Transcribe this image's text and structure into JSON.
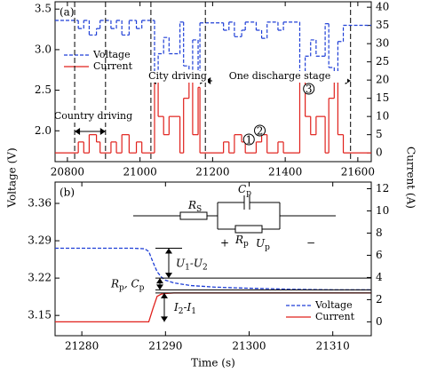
{
  "chart_data": [
    {
      "type": "line",
      "drawstyle": "steps-post",
      "panel_label": "(a)",
      "ylabel": "Voltage (V)",
      "y2label": "Current (A)",
      "xlim": [
        20766,
        21637
      ],
      "ylim": [
        1.62,
        3.59
      ],
      "y2lim": [
        -2.4,
        41.5
      ],
      "xticks": [
        20800,
        21000,
        21200,
        21400,
        21600
      ],
      "yticks": [
        {
          "value": 2,
          "label": "2.0"
        },
        2.5,
        {
          "value": 3,
          "label": "3.0"
        },
        3.5
      ],
      "y2ticks": [
        0,
        5,
        10,
        15,
        20,
        25,
        30,
        35,
        40
      ],
      "legend": "upper left",
      "x": [
        20766,
        20830,
        20845,
        20860,
        20880,
        20890,
        20920,
        20935,
        20950,
        20970,
        20990,
        21005,
        21040,
        21050,
        21065,
        21080,
        21110,
        21120,
        21135,
        21145,
        21160,
        21165,
        21230,
        21245,
        21260,
        21280,
        21290,
        21320,
        21335,
        21350,
        21380,
        21395,
        21440,
        21455,
        21470,
        21485,
        21510,
        21520,
        21535,
        21545,
        21560
      ],
      "series": [
        {
          "name": "Voltage",
          "color": "#1f3fd6",
          "linestyle": "dashed",
          "axis": "y",
          "values": [
            3.36,
            3.26,
            3.36,
            3.18,
            3.26,
            3.36,
            3.26,
            3.36,
            3.18,
            3.36,
            3.26,
            3.36,
            2.62,
            2.95,
            3.15,
            2.95,
            3.34,
            2.8,
            2.62,
            3.12,
            2.7,
            3.33,
            3.24,
            3.34,
            3.16,
            3.24,
            3.34,
            3.24,
            3.14,
            3.34,
            3.24,
            3.34,
            2.6,
            2.92,
            3.12,
            2.92,
            3.32,
            2.78,
            2.6,
            3.1,
            3.3
          ]
        },
        {
          "name": "Current",
          "color": "#e0201b",
          "linestyle": "solid",
          "axis": "y2",
          "values": [
            0,
            3,
            0,
            5,
            3,
            0,
            3,
            0,
            5,
            0,
            3,
            0,
            20,
            10,
            5,
            10,
            0,
            15,
            20,
            5,
            18,
            0,
            3,
            0,
            5,
            3,
            0,
            3,
            5,
            0,
            3,
            0,
            20,
            10,
            5,
            10,
            0,
            15,
            20,
            5,
            0
          ]
        }
      ],
      "annotations": [
        "Country driving",
        "City driving",
        "One discharge stage",
        "1",
        "2",
        "3"
      ]
    },
    {
      "type": "line",
      "panel_label": "(b)",
      "xlabel": "Time (s)",
      "xlim": [
        21276.8,
        21314.6
      ],
      "ylim": [
        3.112,
        3.4
      ],
      "y2lim": [
        -1.25,
        12.6
      ],
      "xticks": [
        21280,
        21290,
        21300,
        21310
      ],
      "yticks": [
        3.15,
        3.22,
        3.29,
        3.36
      ],
      "y2ticks": [
        0,
        2,
        4,
        6,
        8,
        10,
        12
      ],
      "legend": "lower right",
      "x": [
        21276.8,
        21286,
        21287.5,
        21288,
        21288.5,
        21289,
        21289.5,
        21290,
        21291,
        21293,
        21296,
        21300,
        21305,
        21310,
        21314.6
      ],
      "series": [
        {
          "name": "Voltage",
          "color": "#1f3fd6",
          "linestyle": "dashed",
          "axis": "y",
          "values": [
            3.276,
            3.276,
            3.275,
            3.27,
            3.25,
            3.232,
            3.222,
            3.216,
            3.211,
            3.206,
            3.203,
            3.201,
            3.199,
            3.198,
            3.198
          ]
        },
        {
          "name": "Current",
          "color": "#e0201b",
          "linestyle": "solid",
          "axis": "y2",
          "values": [
            0,
            0,
            0,
            0,
            1.2,
            2.3,
            2.5,
            2.55,
            2.6,
            2.6,
            2.6,
            2.6,
            2.6,
            2.6,
            2.6
          ]
        }
      ],
      "annotations": [
        [
          "U",
          "1",
          "-U",
          "2"
        ],
        [
          "R",
          "p",
          ", C",
          "p"
        ],
        [
          "I",
          "2",
          "-I",
          "1"
        ]
      ],
      "circuit": {
        "rs": [
          "R",
          "S"
        ],
        "cp": [
          "C",
          "p"
        ],
        "rp": [
          "R",
          "p"
        ],
        "up": [
          "U",
          "p"
        ],
        "plus": "+",
        "minus": "−"
      }
    }
  ]
}
